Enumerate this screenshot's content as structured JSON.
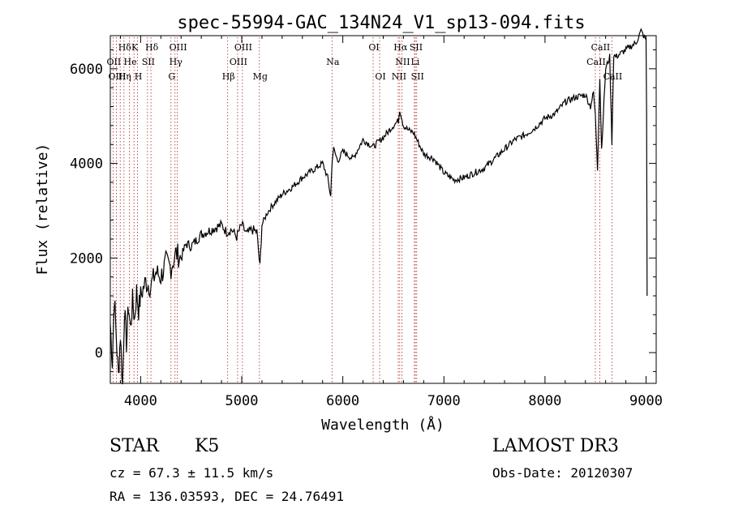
{
  "chart_data": {
    "type": "line",
    "title": "spec-55994-GAC_134N24_V1_sp13-094.fits",
    "xlabel": "Wavelength (Å)",
    "ylabel": "Flux (relative)",
    "xlim": [
      3700,
      9100
    ],
    "ylim": [
      -650,
      6700
    ],
    "x_ticks": [
      4000,
      5000,
      6000,
      7000,
      8000,
      9000
    ],
    "y_ticks": [
      0,
      2000,
      4000,
      6000
    ],
    "line_color": "#000000",
    "marker_color": "#b22222",
    "series": [
      {
        "name": "spectrum",
        "x": [
          3700,
          3720,
          3740,
          3760,
          3780,
          3800,
          3820,
          3840,
          3860,
          3880,
          3900,
          3920,
          3940,
          3960,
          3980,
          4000,
          4050,
          4100,
          4150,
          4200,
          4250,
          4300,
          4350,
          4400,
          4450,
          4500,
          4600,
          4700,
          4800,
          4850,
          4900,
          4950,
          5000,
          5050,
          5100,
          5150,
          5180,
          5200,
          5250,
          5300,
          5400,
          5500,
          5600,
          5700,
          5800,
          5850,
          5880,
          5895,
          5910,
          5950,
          6000,
          6100,
          6200,
          6300,
          6400,
          6500,
          6550,
          6563,
          6600,
          6650,
          6700,
          6800,
          6900,
          7000,
          7100,
          7200,
          7300,
          7400,
          7500,
          7600,
          7700,
          7800,
          7900,
          8000,
          8100,
          8200,
          8300,
          8400,
          8450,
          8480,
          8498,
          8520,
          8542,
          8560,
          8600,
          8640,
          8662,
          8680,
          8700,
          8800,
          8900,
          8950,
          9000,
          9005,
          9010
        ],
        "y": [
          600,
          -200,
          1200,
          300,
          -500,
          400,
          -700,
          900,
          200,
          1000,
          500,
          1100,
          700,
          1300,
          900,
          1200,
          1500,
          1400,
          1700,
          1600,
          1900,
          1800,
          2100,
          2000,
          2300,
          2250,
          2500,
          2600,
          2700,
          2550,
          2600,
          2450,
          2700,
          2500,
          2600,
          2550,
          1800,
          2700,
          2950,
          3100,
          3350,
          3500,
          3700,
          3850,
          4000,
          3700,
          3300,
          4100,
          4300,
          4050,
          4250,
          4100,
          4500,
          4350,
          4550,
          4800,
          4900,
          5150,
          4800,
          4700,
          4650,
          4200,
          4100,
          3800,
          3650,
          3700,
          3800,
          3900,
          4100,
          4300,
          4500,
          4600,
          4750,
          4950,
          5050,
          5300,
          5400,
          5450,
          5200,
          5500,
          5000,
          3900,
          5800,
          4300,
          6000,
          6250,
          4450,
          6300,
          6250,
          6400,
          6550,
          6800,
          6600,
          5000,
          1200
        ]
      }
    ],
    "annotations": [
      {
        "label": "Hδ",
        "x": 3835
      },
      {
        "label": "K",
        "x": 3934
      },
      {
        "label": "Hδ",
        "x": 4102
      },
      {
        "label": "OIII",
        "x": 4363
      },
      {
        "label": "OIII",
        "x": 5007
      },
      {
        "label": "OI",
        "x": 6300
      },
      {
        "label": "Hα",
        "x": 6563
      },
      {
        "label": "SII",
        "x": 6717
      },
      {
        "label": "CaII",
        "x": 8542
      },
      {
        "label": "OII",
        "x": 3727
      },
      {
        "label": "He",
        "x": 3889
      },
      {
        "label": "SII",
        "x": 4068
      },
      {
        "label": "Hγ",
        "x": 4340
      },
      {
        "label": "OIII",
        "x": 4959
      },
      {
        "label": "Na",
        "x": 5893
      },
      {
        "label": "NII",
        "x": 6584
      },
      {
        "label": "Li",
        "x": 6708
      },
      {
        "label": "CaII",
        "x": 8498
      },
      {
        "label": "OIII",
        "x": 3760
      },
      {
        "label": "Hη",
        "x": 3835
      },
      {
        "label": "H",
        "x": 3969
      },
      {
        "label": "G",
        "x": 4300
      },
      {
        "label": "Hβ",
        "x": 4861
      },
      {
        "label": "Mg",
        "x": 5175
      },
      {
        "label": "OI",
        "x": 6364
      },
      {
        "label": "NII",
        "x": 6548
      },
      {
        "label": "SII",
        "x": 6731
      },
      {
        "label": "CaII",
        "x": 8662
      }
    ],
    "marker_lines": [
      3727,
      3760,
      3798,
      3835,
      3889,
      3934,
      3969,
      4068,
      4102,
      4300,
      4340,
      4363,
      4861,
      4959,
      5007,
      5175,
      5893,
      6300,
      6364,
      6548,
      6563,
      6584,
      6708,
      6717,
      6731,
      8498,
      8542,
      8662
    ]
  },
  "info": {
    "object_type": "STAR",
    "subclass": "K5",
    "survey": "LAMOST DR3",
    "cz": "cz = 67.3 ± 11.5 km/s",
    "obs_date": "Obs-Date: 20120307",
    "coords": "RA = 136.03593, DEC =  24.76491"
  }
}
